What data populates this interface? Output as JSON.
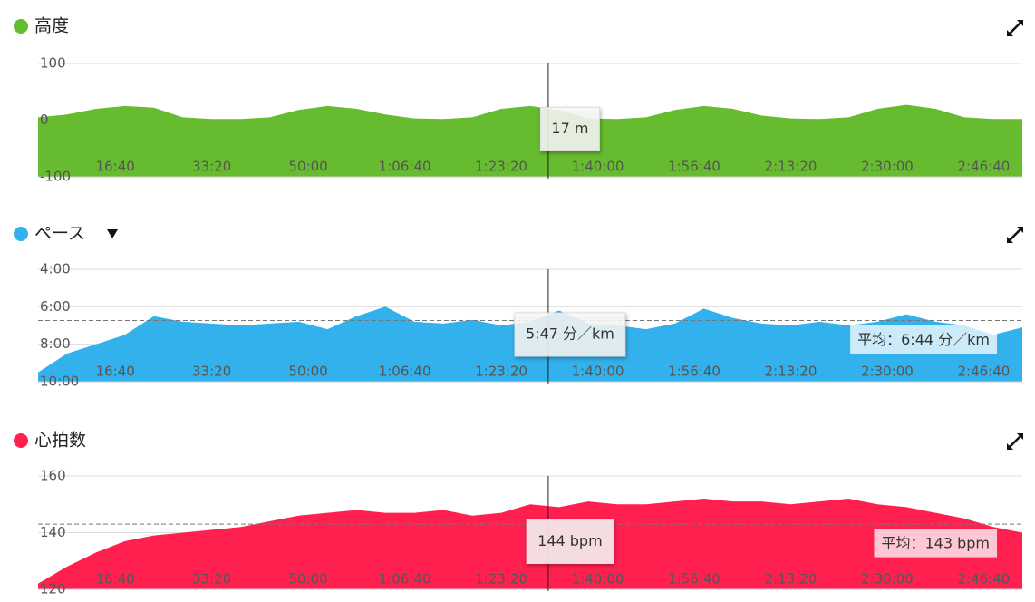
{
  "chart_data": [
    {
      "type": "area",
      "title": "高度",
      "color": "#66bb2e",
      "x": [
        200,
        500,
        800,
        1100,
        1400,
        1700,
        2000,
        2300,
        2600,
        2900,
        3200,
        3500,
        3800,
        4100,
        4400,
        4700,
        5000,
        5300,
        5600,
        5900,
        6200,
        6500,
        6800,
        7100,
        7400,
        7700,
        8000,
        8300,
        8600,
        8900,
        9200,
        9500,
        9800,
        10100,
        10400
      ],
      "values": [
        5,
        10,
        20,
        25,
        22,
        5,
        2,
        2,
        5,
        18,
        25,
        20,
        10,
        3,
        2,
        5,
        20,
        25,
        18,
        3,
        2,
        5,
        18,
        25,
        20,
        8,
        3,
        2,
        5,
        20,
        27,
        20,
        5,
        2,
        2
      ],
      "xlim": [
        200,
        10400
      ],
      "xticks": [
        {
          "value": 1000,
          "label": "16:40"
        },
        {
          "value": 2000,
          "label": "33:20"
        },
        {
          "value": 3000,
          "label": "50:00"
        },
        {
          "value": 4000,
          "label": "1:06:40"
        },
        {
          "value": 5000,
          "label": "1:23:20"
        },
        {
          "value": 6000,
          "label": "1:40:00"
        },
        {
          "value": 7000,
          "label": "1:56:40"
        },
        {
          "value": 8000,
          "label": "2:13:20"
        },
        {
          "value": 9000,
          "label": "2:30:00"
        },
        {
          "value": 10000,
          "label": "2:46:40"
        }
      ],
      "ylim": [
        -100,
        100
      ],
      "yticks": [
        -100,
        0,
        100
      ],
      "grid": true,
      "cursor": {
        "x": 5487,
        "value": 17,
        "label": "17 m"
      }
    },
    {
      "type": "area",
      "title": "ペース",
      "color": "#33b1ec",
      "x": [
        200,
        500,
        800,
        1100,
        1400,
        1700,
        2000,
        2300,
        2600,
        2900,
        3200,
        3500,
        3800,
        4100,
        4400,
        4700,
        5000,
        5300,
        5600,
        5900,
        6200,
        6500,
        6800,
        7100,
        7400,
        7700,
        8000,
        8300,
        8600,
        8900,
        9200,
        9500,
        9800,
        10100,
        10400
      ],
      "values": [
        9.5,
        8.5,
        8.0,
        7.5,
        6.5,
        6.8,
        6.9,
        7.0,
        6.9,
        6.8,
        7.2,
        6.5,
        6.0,
        6.8,
        6.9,
        6.7,
        7.0,
        6.8,
        6.2,
        6.9,
        7.0,
        7.2,
        6.9,
        6.1,
        6.6,
        6.9,
        7.0,
        6.8,
        7.0,
        6.8,
        6.4,
        6.8,
        7.0,
        7.5,
        7.1
      ],
      "xlim": [
        200,
        10400
      ],
      "xticks": [
        {
          "value": 1000,
          "label": "16:40"
        },
        {
          "value": 2000,
          "label": "33:20"
        },
        {
          "value": 3000,
          "label": "50:00"
        },
        {
          "value": 4000,
          "label": "1:06:40"
        },
        {
          "value": 5000,
          "label": "1:23:20"
        },
        {
          "value": 6000,
          "label": "1:40:00"
        },
        {
          "value": 7000,
          "label": "1:56:40"
        },
        {
          "value": 8000,
          "label": "2:13:20"
        },
        {
          "value": 9000,
          "label": "2:30:00"
        },
        {
          "value": 10000,
          "label": "2:46:40"
        }
      ],
      "ylim": [
        10,
        4
      ],
      "yticks": [
        {
          "value": 4,
          "label": "4:00"
        },
        {
          "value": 6,
          "label": "6:00"
        },
        {
          "value": 8,
          "label": "8:00"
        },
        {
          "value": 10,
          "label": "10:00"
        }
      ],
      "grid": true,
      "cursor": {
        "x": 5487,
        "value": 5.783,
        "label": "5:47 分／km"
      },
      "average": {
        "value": 6.733,
        "label": "平均：6:44 分／km"
      }
    },
    {
      "type": "area",
      "title": "心拍数",
      "color": "#ff2050",
      "x": [
        200,
        500,
        800,
        1100,
        1400,
        1700,
        2000,
        2300,
        2600,
        2900,
        3200,
        3500,
        3800,
        4100,
        4400,
        4700,
        5000,
        5300,
        5600,
        5900,
        6200,
        6500,
        6800,
        7100,
        7400,
        7700,
        8000,
        8300,
        8600,
        8900,
        9200,
        9500,
        9800,
        10100,
        10400
      ],
      "values": [
        122,
        128,
        133,
        137,
        139,
        140,
        141,
        142,
        144,
        146,
        147,
        148,
        147,
        147,
        148,
        146,
        147,
        150,
        149,
        151,
        150,
        150,
        151,
        152,
        151,
        151,
        150,
        151,
        152,
        150,
        149,
        147,
        145,
        142,
        140
      ],
      "xlim": [
        200,
        10400
      ],
      "xticks": [
        {
          "value": 1000,
          "label": "16:40"
        },
        {
          "value": 2000,
          "label": "33:20"
        },
        {
          "value": 3000,
          "label": "50:00"
        },
        {
          "value": 4000,
          "label": "1:06:40"
        },
        {
          "value": 5000,
          "label": "1:23:20"
        },
        {
          "value": 6000,
          "label": "1:40:00"
        },
        {
          "value": 7000,
          "label": "1:56:40"
        },
        {
          "value": 8000,
          "label": "2:13:20"
        },
        {
          "value": 9000,
          "label": "2:30:00"
        },
        {
          "value": 10000,
          "label": "2:46:40"
        }
      ],
      "ylim": [
        120,
        160
      ],
      "yticks": [
        120,
        140,
        160
      ],
      "grid": true,
      "cursor": {
        "x": 5487,
        "value": 144,
        "label": "144 bpm"
      },
      "average": {
        "value": 143,
        "label": "平均：143 bpm"
      }
    }
  ]
}
